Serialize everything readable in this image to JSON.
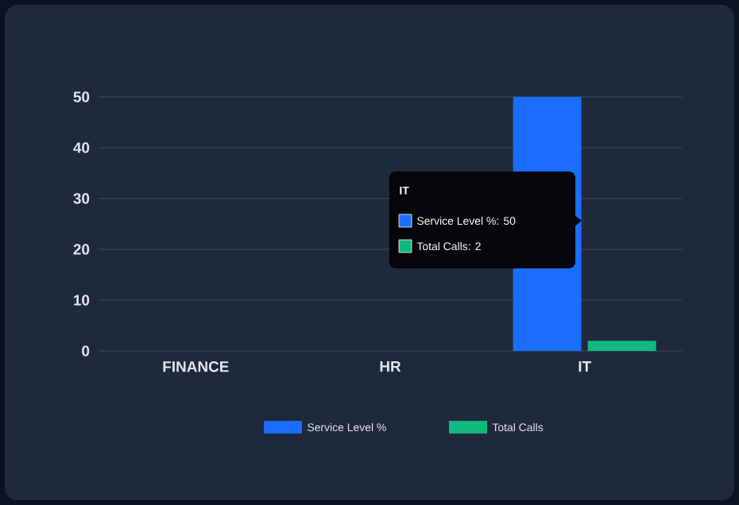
{
  "chart_data": {
    "type": "bar",
    "categories": [
      "FINANCE",
      "HR",
      "IT"
    ],
    "series": [
      {
        "name": "Service Level %",
        "color": "#1a6dff",
        "values": [
          0,
          0,
          50
        ]
      },
      {
        "name": "Total Calls",
        "color": "#10b981",
        "values": [
          0,
          0,
          2
        ]
      }
    ],
    "ylim": [
      0,
      50
    ],
    "yticks": [
      0,
      10,
      20,
      30,
      40,
      50
    ],
    "grid": "y",
    "legend": "bottom",
    "annotations": [
      "IT",
      "Service Level %: 50",
      "Total Calls: 2"
    ]
  }
}
